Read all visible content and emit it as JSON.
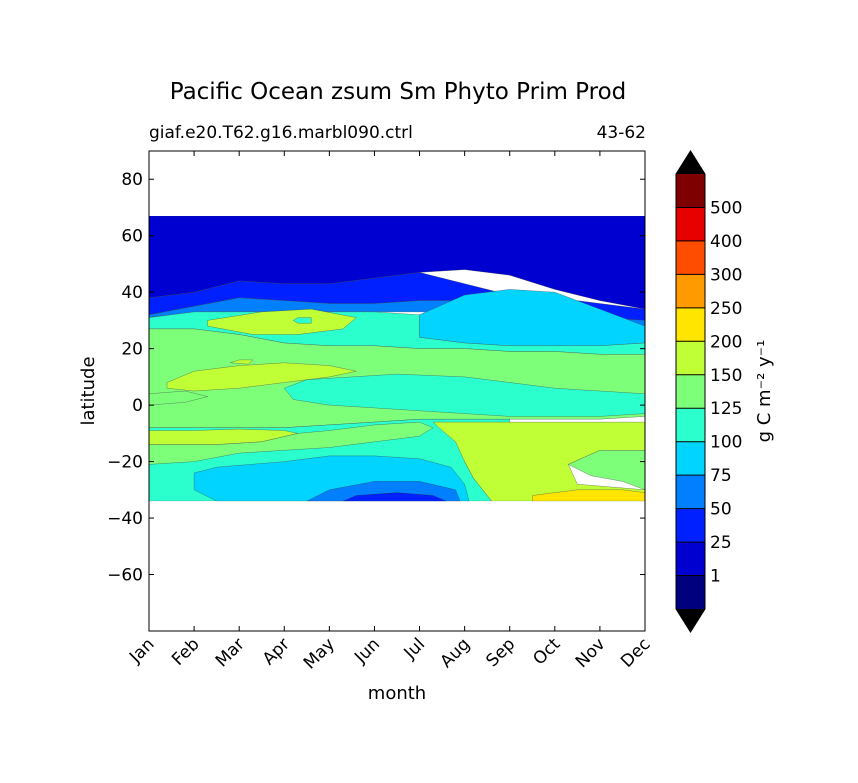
{
  "chart_data": {
    "type": "heatmap",
    "title": "Pacific Ocean zsum Sm Phyto Prim Prod",
    "subtitle_left": "giaf.e20.T62.g16.marbl090.ctrl",
    "subtitle_right": "43-62",
    "xlabel": "month",
    "ylabel": "latitude",
    "x_categories": [
      "Jan",
      "Feb",
      "Mar",
      "Apr",
      "May",
      "Jun",
      "Jul",
      "Aug",
      "Sep",
      "Oct",
      "Nov",
      "Dec"
    ],
    "xlim": [
      0,
      11
    ],
    "ylim": [
      -80,
      90
    ],
    "y_ticks": [
      80,
      60,
      40,
      20,
      0,
      -20,
      -40,
      -60
    ],
    "y_tick_labels": [
      "80",
      "60",
      "40",
      "20",
      "0",
      "−20",
      "−40",
      "−60"
    ],
    "data_extent": {
      "lat_min": -34,
      "lat_max": 67
    },
    "colorbar": {
      "label": "g C m⁻² y⁻¹",
      "levels": [
        0,
        1,
        25,
        50,
        75,
        100,
        125,
        150,
        200,
        250,
        300,
        400,
        500,
        600
      ],
      "tick_labels": [
        "1",
        "25",
        "50",
        "75",
        "100",
        "125",
        "150",
        "200",
        "250",
        "300",
        "400",
        "500"
      ],
      "colors": [
        "#00007f",
        "#0000d0",
        "#0020ff",
        "#0080ff",
        "#00d4ff",
        "#2bffcd",
        "#7dff7a",
        "#c0ff36",
        "#ffe500",
        "#ff9a00",
        "#ff4d00",
        "#e60000",
        "#7f0000"
      ],
      "under_color": "#000000",
      "over_color": "#000000"
    },
    "grid": false,
    "series": [
      {
        "fill_rank": 1,
        "level": "0-1",
        "color": "#00007f",
        "points": [
          [
            0,
            67
          ],
          [
            3.3,
            67
          ],
          [
            2,
            64
          ],
          [
            0,
            63
          ]
        ]
      },
      {
        "fill_rank": 2,
        "level": "1-25",
        "color": "#0000d0",
        "points": [
          [
            0,
            67
          ],
          [
            11,
            67
          ],
          [
            11,
            34
          ],
          [
            10,
            37
          ],
          [
            9,
            41
          ],
          [
            8,
            46
          ],
          [
            7,
            48
          ],
          [
            6,
            47
          ],
          [
            5,
            45
          ],
          [
            4,
            43
          ],
          [
            3,
            43
          ],
          [
            2,
            44
          ],
          [
            1,
            40
          ],
          [
            0,
            38
          ]
        ]
      },
      {
        "fill_rank": 3,
        "level": "25-50",
        "color": "#0020ff",
        "points": [
          [
            0,
            38
          ],
          [
            1,
            40
          ],
          [
            2,
            44
          ],
          [
            3,
            43
          ],
          [
            4,
            43
          ],
          [
            5,
            45
          ],
          [
            6,
            47
          ],
          [
            7,
            43
          ],
          [
            8,
            39
          ],
          [
            9,
            38
          ],
          [
            10,
            36
          ],
          [
            11,
            34
          ],
          [
            11,
            30
          ],
          [
            10,
            31
          ],
          [
            9,
            33
          ],
          [
            8,
            35
          ],
          [
            7,
            37
          ],
          [
            6,
            37
          ],
          [
            5,
            36
          ],
          [
            4,
            36
          ],
          [
            3,
            37
          ],
          [
            2,
            38
          ],
          [
            1,
            35
          ],
          [
            0,
            32
          ]
        ]
      },
      {
        "fill_rank": 4,
        "level": "50-75",
        "color": "#0080ff",
        "points": [
          [
            0,
            32
          ],
          [
            1,
            35
          ],
          [
            2,
            38
          ],
          [
            3,
            37
          ],
          [
            4,
            36
          ],
          [
            5,
            36
          ],
          [
            6,
            37
          ],
          [
            7,
            37
          ],
          [
            8,
            35
          ],
          [
            9,
            33
          ],
          [
            10,
            31
          ],
          [
            11,
            30
          ],
          [
            11,
            26
          ],
          [
            10,
            27
          ],
          [
            9,
            29
          ],
          [
            8,
            31
          ],
          [
            7,
            33
          ],
          [
            6,
            33
          ],
          [
            5,
            33
          ],
          [
            4,
            33
          ],
          [
            3,
            33
          ],
          [
            2,
            33
          ],
          [
            1,
            33
          ],
          [
            0,
            31
          ]
        ]
      },
      {
        "fill_rank": 5,
        "level": "75-100",
        "color": "#00d4ff",
        "points": [
          [
            6,
            28
          ],
          [
            6,
            32
          ],
          [
            7,
            39
          ],
          [
            8,
            41
          ],
          [
            9,
            40
          ],
          [
            10,
            34
          ],
          [
            11,
            28
          ],
          [
            11,
            22
          ],
          [
            10,
            21
          ],
          [
            9,
            21
          ],
          [
            8,
            21
          ],
          [
            7,
            22
          ],
          [
            6,
            24
          ]
        ]
      },
      {
        "fill_rank": 6,
        "level": "100-125",
        "color": "#2bffcd",
        "points": [
          [
            0,
            31
          ],
          [
            1,
            33
          ],
          [
            2,
            33
          ],
          [
            3,
            33
          ],
          [
            4,
            33
          ],
          [
            5,
            33
          ],
          [
            6,
            32
          ],
          [
            6,
            28
          ],
          [
            6,
            24
          ],
          [
            7,
            22
          ],
          [
            8,
            21
          ],
          [
            9,
            21
          ],
          [
            10,
            21
          ],
          [
            11,
            22
          ],
          [
            11,
            18
          ],
          [
            10,
            18
          ],
          [
            9,
            19
          ],
          [
            8,
            19
          ],
          [
            7,
            20
          ],
          [
            6,
            20
          ],
          [
            5,
            21
          ],
          [
            4,
            21
          ],
          [
            3,
            22
          ],
          [
            2,
            25
          ],
          [
            1,
            27
          ],
          [
            0,
            27
          ]
        ]
      },
      {
        "fill_rank": 7,
        "level": "125-150",
        "color": "#7dff7a",
        "points": [
          [
            0,
            27
          ],
          [
            1,
            27
          ],
          [
            2,
            25
          ],
          [
            3,
            22
          ],
          [
            4,
            21
          ],
          [
            5,
            21
          ],
          [
            6,
            20
          ],
          [
            7,
            20
          ],
          [
            8,
            19
          ],
          [
            9,
            19
          ],
          [
            10,
            18
          ],
          [
            11,
            18
          ],
          [
            11,
            -4
          ],
          [
            10,
            -5
          ],
          [
            9,
            -5
          ],
          [
            8,
            -5
          ],
          [
            7,
            -5
          ],
          [
            6,
            -5
          ],
          [
            5,
            -6
          ],
          [
            4,
            -7
          ],
          [
            3,
            -8
          ],
          [
            2,
            -8
          ],
          [
            1,
            -8
          ],
          [
            0,
            -8
          ]
        ]
      },
      {
        "fill_rank": 8,
        "level": "150-200",
        "color": "#c0ff36",
        "points": [
          [
            1.3,
            30
          ],
          [
            2.5,
            33
          ],
          [
            3.6,
            34
          ],
          [
            4.6,
            31
          ],
          [
            4.3,
            27
          ],
          [
            3.3,
            25
          ],
          [
            2.3,
            25
          ],
          [
            1.3,
            28
          ]
        ]
      },
      {
        "fill_rank": 9,
        "level": "150-200",
        "color": "#c0ff36",
        "points": [
          [
            0.4,
            8
          ],
          [
            1,
            12
          ],
          [
            2,
            14
          ],
          [
            3,
            15
          ],
          [
            4,
            14
          ],
          [
            4.6,
            12
          ],
          [
            4,
            10
          ],
          [
            3,
            8
          ],
          [
            2,
            6
          ],
          [
            1,
            5
          ],
          [
            0.4,
            6
          ]
        ]
      },
      {
        "fill_rank": 10,
        "level": "125-150",
        "color": "#7dff7a",
        "points": [
          [
            0,
            4
          ],
          [
            0.8,
            5
          ],
          [
            1.3,
            3
          ],
          [
            0.8,
            1
          ],
          [
            0,
            0
          ]
        ]
      },
      {
        "fill_rank": 11,
        "level": "100-125",
        "color": "#2bffcd",
        "points": [
          [
            3,
            6
          ],
          [
            3.5,
            9
          ],
          [
            4.5,
            10
          ],
          [
            5.5,
            11
          ],
          [
            7,
            10
          ],
          [
            8,
            8
          ],
          [
            9,
            6
          ],
          [
            10,
            5
          ],
          [
            11,
            4
          ],
          [
            11,
            -3
          ],
          [
            10,
            -4
          ],
          [
            9,
            -4
          ],
          [
            8,
            -4
          ],
          [
            7,
            -3
          ],
          [
            6,
            -2
          ],
          [
            5,
            -1
          ],
          [
            4,
            0
          ],
          [
            3.2,
            2
          ]
        ]
      },
      {
        "fill_rank": 12,
        "level": "100-125",
        "color": "#2bffcd",
        "points": [
          [
            0,
            -8
          ],
          [
            1,
            -8
          ],
          [
            2,
            -8
          ],
          [
            3,
            -8
          ],
          [
            4,
            -7
          ],
          [
            5,
            -6
          ],
          [
            6,
            -5
          ],
          [
            7,
            -5
          ],
          [
            8,
            -5
          ],
          [
            8,
            -10
          ],
          [
            7.5,
            -14
          ],
          [
            7,
            -20
          ],
          [
            7.2,
            -26
          ],
          [
            7.6,
            -34
          ],
          [
            0,
            -34
          ]
        ]
      },
      {
        "fill_rank": 13,
        "level": "150-200",
        "color": "#c0ff36",
        "points": [
          [
            0,
            -9
          ],
          [
            1,
            -9
          ],
          [
            2,
            -8.5
          ],
          [
            3,
            -9
          ],
          [
            3.3,
            -10
          ],
          [
            2.5,
            -13
          ],
          [
            1.5,
            -14
          ],
          [
            0,
            -14
          ]
        ]
      },
      {
        "fill_rank": 14,
        "level": "125-150",
        "color": "#7dff7a",
        "points": [
          [
            0,
            -14
          ],
          [
            1.5,
            -14
          ],
          [
            2.5,
            -13
          ],
          [
            3.3,
            -10
          ],
          [
            4,
            -9
          ],
          [
            5,
            -7
          ],
          [
            6,
            -6
          ],
          [
            6.3,
            -8
          ],
          [
            6,
            -11
          ],
          [
            5,
            -13
          ],
          [
            4,
            -15
          ],
          [
            3,
            -16
          ],
          [
            2,
            -17
          ],
          [
            1,
            -20
          ],
          [
            0,
            -21
          ]
        ]
      },
      {
        "fill_rank": 15,
        "level": "150-200",
        "color": "#c0ff36",
        "points": [
          [
            6.3,
            -6
          ],
          [
            11,
            -6
          ],
          [
            11,
            -16
          ],
          [
            10,
            -16
          ],
          [
            9.3,
            -21
          ],
          [
            9.5,
            -28
          ],
          [
            11,
            -30
          ],
          [
            11,
            -34
          ],
          [
            7.6,
            -34
          ],
          [
            7.2,
            -26
          ],
          [
            7,
            -20
          ],
          [
            6.8,
            -13
          ],
          [
            6.5,
            -9
          ]
        ]
      },
      {
        "fill_rank": 16,
        "level": "125-150",
        "color": "#7dff7a",
        "points": [
          [
            9.3,
            -21
          ],
          [
            10,
            -16
          ],
          [
            11,
            -16
          ],
          [
            11,
            -30
          ],
          [
            10.5,
            -27
          ],
          [
            9.8,
            -25
          ]
        ]
      },
      {
        "fill_rank": 17,
        "level": "200-250",
        "color": "#ffe500",
        "points": [
          [
            8.5,
            -32
          ],
          [
            9.5,
            -30
          ],
          [
            10.5,
            -30
          ],
          [
            11,
            -31
          ],
          [
            11,
            -34
          ],
          [
            8.5,
            -34
          ]
        ]
      },
      {
        "fill_rank": 18,
        "level": "75-100",
        "color": "#00d4ff",
        "points": [
          [
            1,
            -24
          ],
          [
            1.5,
            -22
          ],
          [
            3,
            -20
          ],
          [
            4,
            -18
          ],
          [
            5,
            -18
          ],
          [
            6,
            -19
          ],
          [
            6.7,
            -22
          ],
          [
            7,
            -28
          ],
          [
            7.1,
            -34
          ],
          [
            1.5,
            -34
          ],
          [
            1,
            -30
          ]
        ]
      },
      {
        "fill_rank": 19,
        "level": "50-75",
        "color": "#0080ff",
        "points": [
          [
            3.5,
            -34
          ],
          [
            4,
            -30
          ],
          [
            5,
            -27
          ],
          [
            6,
            -27
          ],
          [
            6.8,
            -30
          ],
          [
            6.9,
            -34
          ]
        ]
      },
      {
        "fill_rank": 20,
        "level": "25-50",
        "color": "#0020ff",
        "points": [
          [
            4.3,
            -34
          ],
          [
            4.6,
            -32
          ],
          [
            5.5,
            -31
          ],
          [
            6.3,
            -32
          ],
          [
            6.6,
            -34
          ]
        ]
      },
      {
        "fill_rank": 21,
        "level": "100-125",
        "color": "#2bffcd",
        "points": [
          [
            3.2,
            30
          ],
          [
            3.3,
            31
          ],
          [
            3.6,
            31
          ],
          [
            3.6,
            29
          ],
          [
            3.3,
            29
          ]
        ]
      },
      {
        "fill_rank": 22,
        "level": "150-200",
        "color": "#c0ff36",
        "points": [
          [
            1.8,
            15
          ],
          [
            2.0,
            16
          ],
          [
            2.3,
            16
          ],
          [
            2.2,
            14.5
          ]
        ]
      }
    ]
  }
}
